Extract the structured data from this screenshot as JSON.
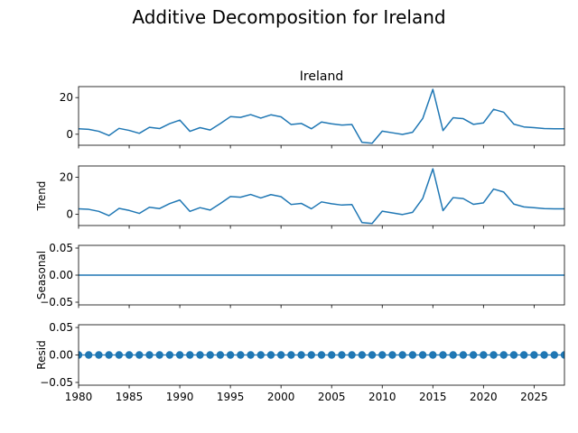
{
  "figure": {
    "suptitle": "Additive Decomposition for Ireland",
    "line_color": "#1f77b4"
  },
  "chart_data": [
    {
      "type": "line",
      "panel": "observed",
      "title": "Ireland",
      "ylabel": "",
      "x": [
        1980,
        1981,
        1982,
        1983,
        1984,
        1985,
        1986,
        1987,
        1988,
        1989,
        1990,
        1991,
        1992,
        1993,
        1994,
        1995,
        1996,
        1997,
        1998,
        1999,
        2000,
        2001,
        2002,
        2003,
        2004,
        2005,
        2006,
        2007,
        2008,
        2009,
        2010,
        2011,
        2012,
        2013,
        2014,
        2015,
        2016,
        2017,
        2018,
        2019,
        2020,
        2021,
        2022,
        2023,
        2024,
        2025,
        2026,
        2027,
        2028
      ],
      "values": [
        3.0,
        2.7,
        1.6,
        -0.7,
        3.2,
        2.1,
        0.5,
        3.8,
        3.1,
        5.8,
        7.7,
        1.6,
        3.6,
        2.3,
        5.8,
        9.6,
        9.2,
        10.7,
        8.8,
        10.6,
        9.5,
        5.3,
        5.9,
        3.0,
        6.7,
        5.7,
        5.0,
        5.3,
        -4.4,
        -4.9,
        1.7,
        0.8,
        -0.1,
        1.1,
        8.6,
        24.5,
        2.0,
        9.0,
        8.5,
        5.4,
        6.2,
        13.6,
        12.0,
        5.5,
        4.0,
        3.6,
        3.1,
        3.0,
        3.0
      ],
      "xlim": [
        1980,
        2028
      ],
      "ylim": [
        -6,
        26
      ],
      "yticks": [
        0,
        20
      ],
      "ytick_labels": [
        "0",
        "20"
      ],
      "xticks": [
        1980,
        1985,
        1990,
        1995,
        2000,
        2005,
        2010,
        2015,
        2020,
        2025
      ],
      "xtick_labels": [
        "",
        "",
        "",
        "",
        "",
        "",
        "",
        "",
        "",
        ""
      ]
    },
    {
      "type": "line",
      "panel": "trend",
      "title": "",
      "ylabel": "Trend",
      "x": [
        1980,
        1981,
        1982,
        1983,
        1984,
        1985,
        1986,
        1987,
        1988,
        1989,
        1990,
        1991,
        1992,
        1993,
        1994,
        1995,
        1996,
        1997,
        1998,
        1999,
        2000,
        2001,
        2002,
        2003,
        2004,
        2005,
        2006,
        2007,
        2008,
        2009,
        2010,
        2011,
        2012,
        2013,
        2014,
        2015,
        2016,
        2017,
        2018,
        2019,
        2020,
        2021,
        2022,
        2023,
        2024,
        2025,
        2026,
        2027,
        2028
      ],
      "values": [
        3.0,
        2.7,
        1.6,
        -0.7,
        3.2,
        2.1,
        0.5,
        3.8,
        3.1,
        5.8,
        7.7,
        1.6,
        3.6,
        2.3,
        5.8,
        9.6,
        9.2,
        10.7,
        8.8,
        10.6,
        9.5,
        5.3,
        5.9,
        3.0,
        6.7,
        5.7,
        5.0,
        5.3,
        -4.4,
        -4.9,
        1.7,
        0.8,
        -0.1,
        1.1,
        8.6,
        24.5,
        2.0,
        9.0,
        8.5,
        5.4,
        6.2,
        13.6,
        12.0,
        5.5,
        4.0,
        3.6,
        3.1,
        3.0,
        3.0
      ],
      "xlim": [
        1980,
        2028
      ],
      "ylim": [
        -6,
        26
      ],
      "yticks": [
        0,
        20
      ],
      "ytick_labels": [
        "0",
        "20"
      ],
      "xticks": [
        1980,
        1985,
        1990,
        1995,
        2000,
        2005,
        2010,
        2015,
        2020,
        2025
      ],
      "xtick_labels": [
        "",
        "",
        "",
        "",
        "",
        "",
        "",
        "",
        "",
        ""
      ]
    },
    {
      "type": "line",
      "panel": "seasonal",
      "title": "",
      "ylabel": "Seasonal",
      "x": [
        1980,
        2028
      ],
      "values": [
        0.0,
        0.0
      ],
      "xlim": [
        1980,
        2028
      ],
      "ylim": [
        -0.055,
        0.055
      ],
      "yticks": [
        -0.05,
        0.0,
        0.05
      ],
      "ytick_labels": [
        "−0.05",
        "0.00",
        "0.05"
      ],
      "xticks": [
        1980,
        1985,
        1990,
        1995,
        2000,
        2005,
        2010,
        2015,
        2020,
        2025
      ],
      "xtick_labels": [
        "",
        "",
        "",
        "",
        "",
        "",
        "",
        "",
        "",
        ""
      ]
    },
    {
      "type": "scatter",
      "panel": "resid",
      "title": "",
      "ylabel": "Resid",
      "x": [
        1980,
        1981,
        1982,
        1983,
        1984,
        1985,
        1986,
        1987,
        1988,
        1989,
        1990,
        1991,
        1992,
        1993,
        1994,
        1995,
        1996,
        1997,
        1998,
        1999,
        2000,
        2001,
        2002,
        2003,
        2004,
        2005,
        2006,
        2007,
        2008,
        2009,
        2010,
        2011,
        2012,
        2013,
        2014,
        2015,
        2016,
        2017,
        2018,
        2019,
        2020,
        2021,
        2022,
        2023,
        2024,
        2025,
        2026,
        2027,
        2028
      ],
      "values": [
        0,
        0,
        0,
        0,
        0,
        0,
        0,
        0,
        0,
        0,
        0,
        0,
        0,
        0,
        0,
        0,
        0,
        0,
        0,
        0,
        0,
        0,
        0,
        0,
        0,
        0,
        0,
        0,
        0,
        0,
        0,
        0,
        0,
        0,
        0,
        0,
        0,
        0,
        0,
        0,
        0,
        0,
        0,
        0,
        0,
        0,
        0,
        0,
        0
      ],
      "xlim": [
        1980,
        2028
      ],
      "ylim": [
        -0.055,
        0.055
      ],
      "yticks": [
        -0.05,
        0.0,
        0.05
      ],
      "ytick_labels": [
        "−0.05",
        "0.00",
        "0.05"
      ],
      "baseline": 0,
      "xticks": [
        1980,
        1985,
        1990,
        1995,
        2000,
        2005,
        2010,
        2015,
        2020,
        2025
      ],
      "xtick_labels": [
        "1980",
        "1985",
        "1990",
        "1995",
        "2000",
        "2005",
        "2010",
        "2015",
        "2020",
        "2025"
      ]
    }
  ]
}
